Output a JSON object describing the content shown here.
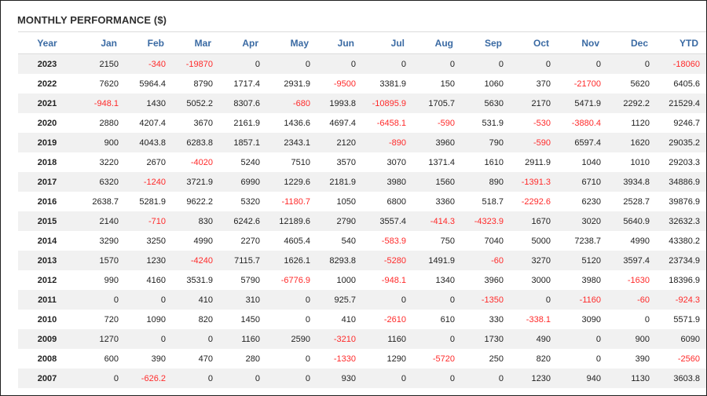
{
  "title": "MONTHLY PERFORMANCE ($)",
  "colors": {
    "negative": "#ff2a2a",
    "header_text": "#3a6aa3",
    "stripe": "#f1f1f1"
  },
  "headers": [
    "Year",
    "Jan",
    "Feb",
    "Mar",
    "Apr",
    "May",
    "Jun",
    "Jul",
    "Aug",
    "Sep",
    "Oct",
    "Nov",
    "Dec",
    "YTD"
  ],
  "rows": [
    [
      "2023",
      "2150",
      "-340",
      "-19870",
      "0",
      "0",
      "0",
      "0",
      "0",
      "0",
      "0",
      "0",
      "0",
      "-18060"
    ],
    [
      "2022",
      "7620",
      "5964.4",
      "8790",
      "1717.4",
      "2931.9",
      "-9500",
      "3381.9",
      "150",
      "1060",
      "370",
      "-21700",
      "5620",
      "6405.6"
    ],
    [
      "2021",
      "-948.1",
      "1430",
      "5052.2",
      "8307.6",
      "-680",
      "1993.8",
      "-10895.9",
      "1705.7",
      "5630",
      "2170",
      "5471.9",
      "2292.2",
      "21529.4"
    ],
    [
      "2020",
      "2880",
      "4207.4",
      "3670",
      "2161.9",
      "1436.6",
      "4697.4",
      "-6458.1",
      "-590",
      "531.9",
      "-530",
      "-3880.4",
      "1120",
      "9246.7"
    ],
    [
      "2019",
      "900",
      "4043.8",
      "6283.8",
      "1857.1",
      "2343.1",
      "2120",
      "-890",
      "3960",
      "790",
      "-590",
      "6597.4",
      "1620",
      "29035.2"
    ],
    [
      "2018",
      "3220",
      "2670",
      "-4020",
      "5240",
      "7510",
      "3570",
      "3070",
      "1371.4",
      "1610",
      "2911.9",
      "1040",
      "1010",
      "29203.3"
    ],
    [
      "2017",
      "6320",
      "-1240",
      "3721.9",
      "6990",
      "1229.6",
      "2181.9",
      "3980",
      "1560",
      "890",
      "-1391.3",
      "6710",
      "3934.8",
      "34886.9"
    ],
    [
      "2016",
      "2638.7",
      "5281.9",
      "9622.2",
      "5320",
      "-1180.7",
      "1050",
      "6800",
      "3360",
      "518.7",
      "-2292.6",
      "6230",
      "2528.7",
      "39876.9"
    ],
    [
      "2015",
      "2140",
      "-710",
      "830",
      "6242.6",
      "12189.6",
      "2790",
      "3557.4",
      "-414.3",
      "-4323.9",
      "1670",
      "3020",
      "5640.9",
      "32632.3"
    ],
    [
      "2014",
      "3290",
      "3250",
      "4990",
      "2270",
      "4605.4",
      "540",
      "-583.9",
      "750",
      "7040",
      "5000",
      "7238.7",
      "4990",
      "43380.2"
    ],
    [
      "2013",
      "1570",
      "1230",
      "-4240",
      "7115.7",
      "1626.1",
      "8293.8",
      "-5280",
      "1491.9",
      "-60",
      "3270",
      "5120",
      "3597.4",
      "23734.9"
    ],
    [
      "2012",
      "990",
      "4160",
      "3531.9",
      "5790",
      "-6776.9",
      "1000",
      "-948.1",
      "1340",
      "3960",
      "3000",
      "3980",
      "-1630",
      "18396.9"
    ],
    [
      "2011",
      "0",
      "0",
      "410",
      "310",
      "0",
      "925.7",
      "0",
      "0",
      "-1350",
      "0",
      "-1160",
      "-60",
      "-924.3"
    ],
    [
      "2010",
      "720",
      "1090",
      "820",
      "1450",
      "0",
      "410",
      "-2610",
      "610",
      "330",
      "-338.1",
      "3090",
      "0",
      "5571.9"
    ],
    [
      "2009",
      "1270",
      "0",
      "0",
      "1160",
      "2590",
      "-3210",
      "1160",
      "0",
      "1730",
      "490",
      "0",
      "900",
      "6090"
    ],
    [
      "2008",
      "600",
      "390",
      "470",
      "280",
      "0",
      "-1330",
      "1290",
      "-5720",
      "250",
      "820",
      "0",
      "390",
      "-2560"
    ],
    [
      "2007",
      "0",
      "-626.2",
      "0",
      "0",
      "0",
      "930",
      "0",
      "0",
      "0",
      "1230",
      "940",
      "1130",
      "3603.8"
    ]
  ]
}
